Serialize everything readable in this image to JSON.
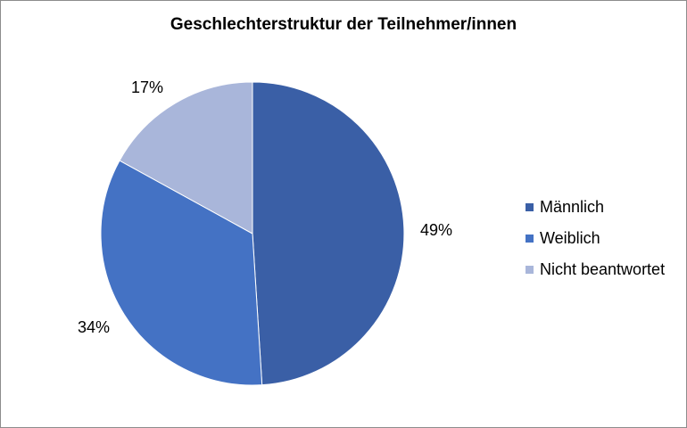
{
  "chart_data": {
    "type": "pie",
    "title": "Geschlechterstruktur der Teilnehmer/innen",
    "categories": [
      "Männlich",
      "Weiblich",
      "Nicht beantwortet"
    ],
    "values": [
      49,
      34,
      17
    ],
    "labels": [
      "49%",
      "34%",
      "17%"
    ],
    "colors": [
      "#3a5fa6",
      "#4472c4",
      "#a9b6da"
    ],
    "legend_position": "right"
  }
}
